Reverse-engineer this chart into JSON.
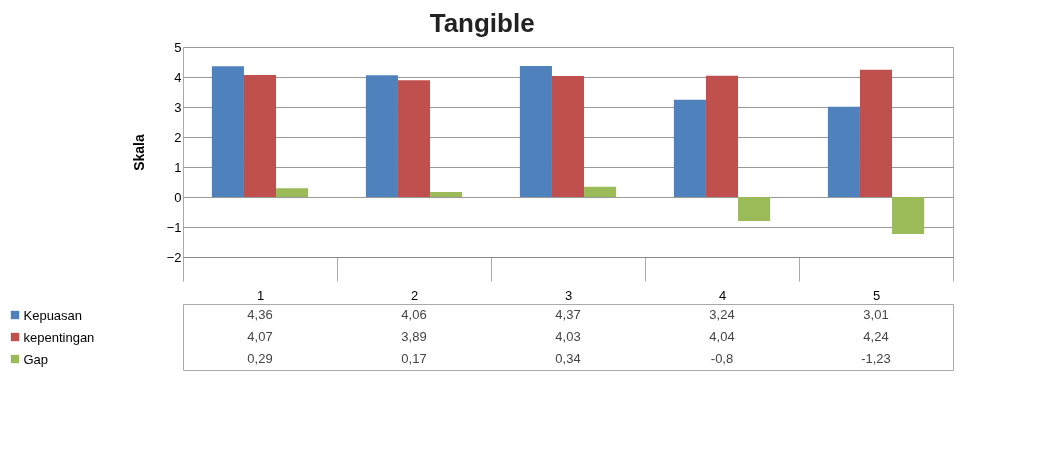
{
  "chart_data": {
    "type": "bar",
    "title": "Tangible",
    "ylabel": "Skala",
    "categories": [
      "1",
      "2",
      "3",
      "4",
      "5"
    ],
    "series": [
      {
        "name": "Kepuasan",
        "color": "#4f81bd",
        "values": [
          4.36,
          4.06,
          4.37,
          3.24,
          3.01
        ],
        "value_labels": [
          "4,36",
          "4,06",
          "4,37",
          "3,24",
          "3,01"
        ]
      },
      {
        "name": "kepentingan",
        "color": "#c0504d",
        "values": [
          4.07,
          3.89,
          4.03,
          4.04,
          4.24
        ],
        "value_labels": [
          "4,07",
          "3,89",
          "4,03",
          "4,04",
          "4,24"
        ]
      },
      {
        "name": "Gap",
        "color": "#9bbb59",
        "values": [
          0.29,
          0.17,
          0.34,
          -0.8,
          -1.23
        ],
        "value_labels": [
          "0,29",
          "0,17",
          "0,34",
          "-0,8",
          "-1,23"
        ]
      }
    ],
    "ylim": [
      -2,
      5
    ],
    "yticks": [
      -2,
      -1,
      0,
      1,
      2,
      3,
      4,
      5
    ],
    "grid": "y",
    "legend": "bottom"
  }
}
